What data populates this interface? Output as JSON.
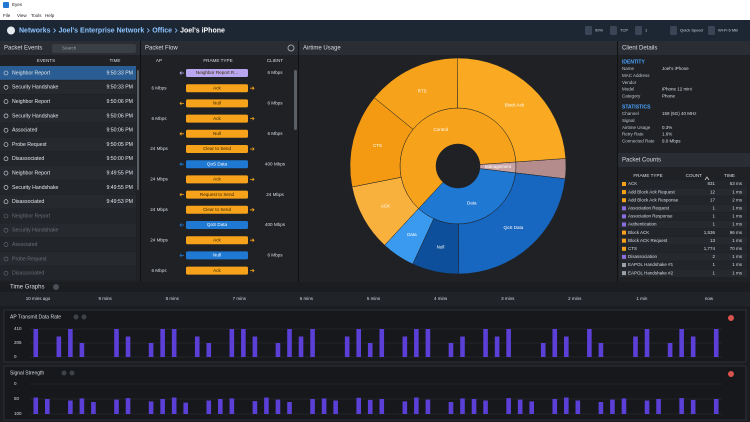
{
  "app": {
    "title": "Eyes",
    "menu": [
      "File",
      "View",
      "Tools",
      "Help"
    ]
  },
  "nav": {
    "breadcrumb": [
      "Networks",
      "Joel's Enterprise Network",
      "Office",
      "Joel's iPhone"
    ],
    "status": [
      "90%",
      "TCP",
      "1",
      "Quick Speed",
      "Wi-Fi 6 MB"
    ]
  },
  "packet_events": {
    "title": "Packet Events",
    "search": "Search",
    "columns": [
      "EVENTS",
      "TIME"
    ],
    "rows": [
      {
        "event": "Neighbor Report",
        "time": "9:50:33 PM"
      },
      {
        "event": "Security Handshake",
        "time": "9:50:33 PM"
      },
      {
        "event": "Neighbor Report",
        "time": "9:50:06 PM"
      },
      {
        "event": "Security Handshake",
        "time": "9:50:06 PM"
      },
      {
        "event": "Associated",
        "time": "9:50:06 PM"
      },
      {
        "event": "Probe Request",
        "time": "9:50:05 PM"
      },
      {
        "event": "Disassociated",
        "time": "9:50:00 PM"
      },
      {
        "event": "Neighbor Report",
        "time": "9:49:55 PM"
      },
      {
        "event": "Security Handshake",
        "time": "9:49:55 PM"
      },
      {
        "event": "Disassociated",
        "time": "9:49:53 PM"
      },
      {
        "event": "Neighbor Report",
        "dim": true
      },
      {
        "event": "Security Handshake",
        "dim": true
      },
      {
        "event": "Associated",
        "dim": true
      },
      {
        "event": "Probe Request",
        "dim": true
      },
      {
        "event": "Disassociated",
        "dim": true
      }
    ]
  },
  "packet_flow": {
    "title": "Packet Flow",
    "columns": [
      "AP",
      "FRAME TYPE",
      "CLIENT"
    ],
    "rows": [
      {
        "frame": "Neighbor Report R...",
        "client": "6 Mbps",
        "color": "#b9a6f0"
      },
      {
        "ap": "6 Mbps",
        "frame": "Ack",
        "color": "#f7a21b"
      },
      {
        "frame": "Null",
        "client": "6 Mbps",
        "color": "#f7a21b"
      },
      {
        "ap": "6 Mbps",
        "frame": "Ack",
        "color": "#f7a21b"
      },
      {
        "frame": "Null",
        "client": "6 Mbps",
        "color": "#f7a21b"
      },
      {
        "ap": "24 Mbps",
        "frame": "Clear to Send",
        "color": "#f7a21b"
      },
      {
        "frame": "QoS Data",
        "client": "400 Mbps",
        "color": "#1f78d1"
      },
      {
        "ap": "24 Mbps",
        "frame": "Ack",
        "color": "#f7a21b"
      },
      {
        "frame": "Request to Send",
        "client": "24 Mbps",
        "color": "#f7a21b"
      },
      {
        "ap": "24 Mbps",
        "frame": "Clear to Send",
        "color": "#f7a21b"
      },
      {
        "frame": "QoS Data",
        "client": "400 Mbps",
        "color": "#1f78d1"
      },
      {
        "ap": "24 Mbps",
        "frame": "Ack",
        "color": "#f7a21b"
      },
      {
        "frame": "Null",
        "client": "6 Mbps",
        "color": "#1f78d1"
      },
      {
        "ap": "6 Mbps",
        "frame": "Ack",
        "color": "#f7a21b"
      }
    ]
  },
  "airtime": {
    "title": "Airtime Usage",
    "chart_data": {
      "type": "sunburst",
      "inner": [
        {
          "label": "Management",
          "value": 3,
          "color": "#c9a3a3"
        },
        {
          "label": "Data",
          "value": 35,
          "color": "#1f78d1"
        },
        {
          "label": "Control",
          "value": 62,
          "color": "#f7a21b"
        }
      ],
      "outer": [
        {
          "value": 3,
          "color": "#b58c8c"
        },
        {
          "label": "QoS Data",
          "value": 23,
          "color": "#1766c0"
        },
        {
          "label": "Null",
          "value": 7,
          "color": "#0d4f9a"
        },
        {
          "label": "Data",
          "value": 5,
          "color": "#3a9af0"
        },
        {
          "label": "ACK",
          "value": 10,
          "color": "#f9b13e"
        },
        {
          "label": "CTS",
          "value": 14,
          "color": "#f39a12"
        },
        {
          "label": "RTS",
          "value": 14,
          "color": "#f7a21b"
        },
        {
          "label": "Block Ack",
          "value": 24,
          "color": "#f9aa22"
        }
      ]
    }
  },
  "client_details": {
    "title": "Client Details",
    "sections": [
      {
        "title": "IDENTITY",
        "rows": [
          [
            "Name",
            "Joel's iPhone"
          ],
          [
            "MAC Address"
          ],
          [
            "Vendor"
          ],
          [
            "Model",
            "iPhone 12 mini"
          ],
          [
            "Category",
            "Phone"
          ]
        ]
      },
      {
        "title": "STATISTICS",
        "rows": [
          [
            "Channel",
            "159 (5G)  40 MHz"
          ],
          [
            "Signal"
          ],
          [
            "Airtime Usage",
            "0.3%"
          ],
          [
            "Retry Rate",
            "1.6%"
          ],
          [
            "Connected Rate",
            "9.0 Mbps"
          ]
        ]
      }
    ]
  },
  "packet_counts": {
    "title": "Packet Counts",
    "columns": [
      "FRAME TYPE",
      "COUNT",
      "TIME"
    ],
    "rows": [
      {
        "color": "#f7a21b",
        "cells": [
          "ACK",
          "831",
          "53 ms"
        ]
      },
      {
        "color": "#f7a21b",
        "cells": [
          "Add Block Ack Request",
          "12",
          "1 ms"
        ]
      },
      {
        "color": "#f7a21b",
        "cells": [
          "Add Block Ack Response",
          "17",
          "2 ms"
        ]
      },
      {
        "color": "#8a6fe0",
        "cells": [
          "Association Request",
          "1",
          "1 ms"
        ]
      },
      {
        "color": "#8a6fe0",
        "cells": [
          "Association Response",
          "1",
          "1 ms"
        ]
      },
      {
        "color": "#8a6fe0",
        "cells": [
          "Authentication",
          "1",
          "1 ms"
        ]
      },
      {
        "color": "#f7a21b",
        "cells": [
          "Block ACK",
          "1,536",
          "96 ms"
        ]
      },
      {
        "color": "#f7a21b",
        "cells": [
          "Block ACK Request",
          "13",
          "1 ms"
        ]
      },
      {
        "color": "#f7a21b",
        "cells": [
          "CTS",
          "1,774",
          "70 ms"
        ]
      },
      {
        "color": "#8a6fe0",
        "cells": [
          "Disassociation",
          "2",
          "1 ms"
        ]
      },
      {
        "color": "#9aa0a8",
        "cells": [
          "EAPOL Handshake #1",
          "1",
          "1 ms"
        ]
      },
      {
        "color": "#9aa0a8",
        "cells": [
          "EAPOL Handshake #2",
          "1",
          "1 ms"
        ]
      }
    ]
  },
  "time_graphs": {
    "title": "Time Graphs",
    "axis_labels": [
      "10 mins ago",
      "9 mins",
      "8 mins",
      "7 mins",
      "6 mins",
      "5 mins",
      "4 mins",
      "3 mins",
      "2 mins",
      "1 min",
      "now"
    ],
    "graphs": [
      {
        "type": "bar",
        "title": "AP Transmit Data Rate",
        "ylim": [
          0,
          410
        ],
        "yticks": [
          410,
          205,
          0
        ],
        "color": "#5b3fd6",
        "values": [
          410,
          0,
          300,
          410,
          205,
          0,
          0,
          410,
          300,
          0,
          205,
          410,
          410,
          0,
          300,
          205,
          0,
          410,
          410,
          300,
          0,
          205,
          410,
          300,
          410,
          0,
          0,
          300,
          410,
          205,
          410,
          0,
          300,
          410,
          410,
          0,
          205,
          300,
          0,
          410,
          300,
          410,
          0,
          0,
          205,
          410,
          300,
          0,
          410,
          205,
          0,
          0,
          300,
          410,
          0,
          205,
          410,
          300,
          0,
          410
        ]
      },
      {
        "type": "bar",
        "title": "Signal Strength",
        "ylim": [
          100,
          0
        ],
        "yticks": [
          0,
          50,
          100
        ],
        "color": "#5b3fd6",
        "values": [
          45,
          50,
          null,
          55,
          48,
          60,
          null,
          52,
          47,
          null,
          58,
          50,
          45,
          62,
          null,
          55,
          50,
          48,
          null,
          57,
          45,
          52,
          60,
          null,
          50,
          48,
          55,
          null,
          46,
          53,
          50,
          null,
          58,
          45,
          52,
          null,
          60,
          48,
          50,
          55,
          null,
          47,
          52,
          58,
          null,
          50,
          45,
          55,
          null,
          60,
          52,
          48,
          null,
          55,
          50,
          null,
          47,
          53,
          null,
          50
        ]
      }
    ]
  }
}
